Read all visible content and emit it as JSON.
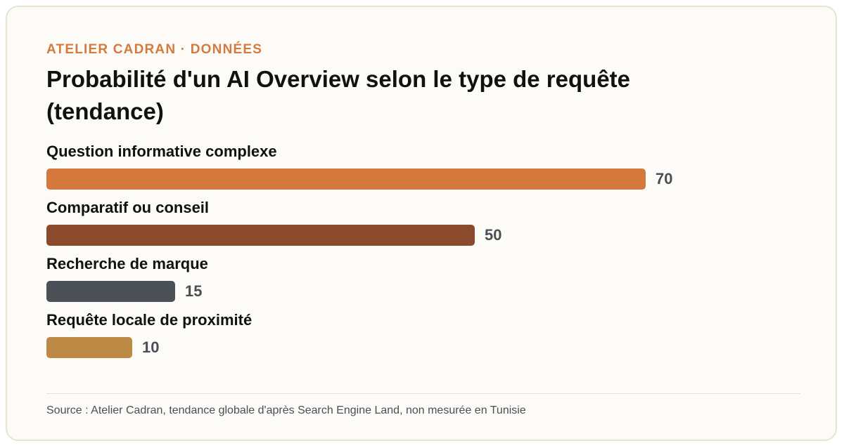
{
  "header": {
    "eyebrow": "ATELIER CADRAN · DONNÉES",
    "title": "Probabilité d'un AI Overview selon le type de requête (tendance)"
  },
  "chart_data": {
    "type": "bar",
    "orientation": "horizontal",
    "title": "Probabilité d'un AI Overview selon le type de requête (tendance)",
    "categories": [
      "Question informative complexe",
      "Comparatif ou conseil",
      "Recherche de marque",
      "Requête locale de proximité"
    ],
    "values": [
      70,
      50,
      15,
      10
    ],
    "colors": [
      "#d4783e",
      "#8b4a2b",
      "#4b5157",
      "#bc8a45"
    ],
    "xlim": [
      0,
      100
    ],
    "grid": false,
    "legend": "none"
  },
  "footer": {
    "source": "Source : Atelier Cadran, tendance globale d'après Search Engine Land, non mesurée en Tunisie"
  }
}
